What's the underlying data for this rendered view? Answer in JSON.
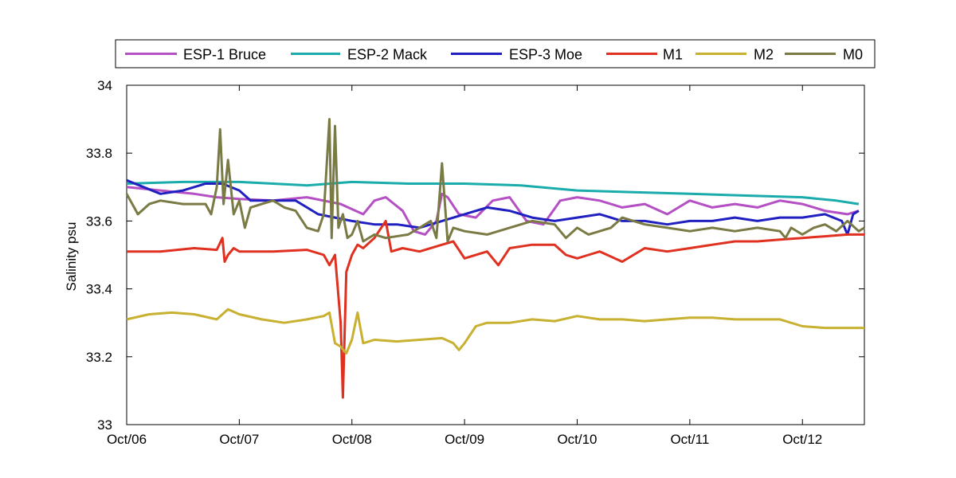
{
  "chart_data": {
    "type": "line",
    "xlabel": "",
    "ylabel": "Salinity psu",
    "ylim": [
      33,
      34
    ],
    "xlim": [
      0,
      6.55
    ],
    "x_ticks": [
      0,
      1,
      2,
      3,
      4,
      5,
      6
    ],
    "x_tick_labels": [
      "Oct/06",
      "Oct/07",
      "Oct/08",
      "Oct/09",
      "Oct/10",
      "Oct/11",
      "Oct/12"
    ],
    "y_ticks": [
      33,
      33.2,
      33.4,
      33.6,
      33.8,
      34
    ],
    "y_tick_labels": [
      "33",
      "33.2",
      "33.4",
      "33.6",
      "33.8",
      "34"
    ],
    "grid": false,
    "legend_position": "top",
    "series": [
      {
        "name": "ESP-1 Bruce",
        "color": "#b44fc4",
        "x": [
          0,
          0.3,
          0.6,
          0.8,
          1.0,
          1.3,
          1.6,
          1.9,
          2.1,
          2.2,
          2.3,
          2.45,
          2.55,
          2.65,
          2.75,
          2.8,
          2.85,
          2.95,
          3.1,
          3.25,
          3.4,
          3.55,
          3.7,
          3.85,
          4.0,
          4.2,
          4.4,
          4.6,
          4.8,
          5.0,
          5.2,
          5.4,
          5.6,
          5.8,
          6.0,
          6.2,
          6.4,
          6.5
        ],
        "y": [
          33.7,
          33.69,
          33.68,
          33.67,
          33.665,
          33.66,
          33.67,
          33.65,
          33.62,
          33.66,
          33.67,
          33.63,
          33.57,
          33.56,
          33.6,
          33.68,
          33.67,
          33.62,
          33.61,
          33.66,
          33.67,
          33.6,
          33.59,
          33.66,
          33.67,
          33.66,
          33.64,
          33.65,
          33.62,
          33.66,
          33.64,
          33.65,
          33.64,
          33.66,
          33.65,
          33.63,
          33.62,
          33.63
        ]
      },
      {
        "name": "ESP-2 Mack",
        "color": "#1aacac",
        "x": [
          0,
          0.5,
          1.0,
          1.3,
          1.6,
          2.0,
          2.5,
          3.0,
          3.5,
          4.0,
          4.5,
          5.0,
          5.5,
          6.0,
          6.3,
          6.5
        ],
        "y": [
          33.71,
          33.715,
          33.715,
          33.71,
          33.705,
          33.715,
          33.71,
          33.71,
          33.705,
          33.69,
          33.685,
          33.68,
          33.675,
          33.67,
          33.66,
          33.65
        ]
      },
      {
        "name": "ESP-3 Moe",
        "color": "#2020c0",
        "x": [
          0,
          0.15,
          0.3,
          0.5,
          0.7,
          0.85,
          1.0,
          1.1,
          1.3,
          1.5,
          1.7,
          1.85,
          2.0,
          2.2,
          2.4,
          2.6,
          2.8,
          3.0,
          3.2,
          3.4,
          3.6,
          3.8,
          4.0,
          4.2,
          4.4,
          4.6,
          4.8,
          5.0,
          5.2,
          5.4,
          5.6,
          5.8,
          6.0,
          6.2,
          6.35,
          6.4,
          6.45,
          6.5
        ],
        "y": [
          33.72,
          33.7,
          33.68,
          33.69,
          33.71,
          33.71,
          33.69,
          33.66,
          33.66,
          33.66,
          33.62,
          33.61,
          33.6,
          33.59,
          33.59,
          33.58,
          33.6,
          33.62,
          33.64,
          33.63,
          33.61,
          33.6,
          33.61,
          33.62,
          33.6,
          33.6,
          33.59,
          33.6,
          33.6,
          33.61,
          33.6,
          33.61,
          33.61,
          33.62,
          33.6,
          33.56,
          33.62,
          33.63
        ]
      },
      {
        "name": "M1",
        "color": "#e03020",
        "x": [
          0,
          0.3,
          0.6,
          0.8,
          0.85,
          0.87,
          0.9,
          0.95,
          1.0,
          1.3,
          1.6,
          1.75,
          1.8,
          1.85,
          1.9,
          1.92,
          1.95,
          2.0,
          2.05,
          2.1,
          2.2,
          2.3,
          2.35,
          2.45,
          2.6,
          2.8,
          2.9,
          3.0,
          3.2,
          3.3,
          3.4,
          3.6,
          3.8,
          3.9,
          4.0,
          4.1,
          4.2,
          4.4,
          4.6,
          4.8,
          5.0,
          5.2,
          5.4,
          5.6,
          5.8,
          6.0,
          6.2,
          6.4,
          6.55
        ],
        "y": [
          33.51,
          33.51,
          33.52,
          33.515,
          33.55,
          33.48,
          33.5,
          33.52,
          33.51,
          33.51,
          33.515,
          33.5,
          33.47,
          33.5,
          33.3,
          33.08,
          33.45,
          33.5,
          33.53,
          33.52,
          33.55,
          33.6,
          33.51,
          33.52,
          33.51,
          33.53,
          33.54,
          33.49,
          33.51,
          33.47,
          33.52,
          33.53,
          33.53,
          33.5,
          33.49,
          33.5,
          33.51,
          33.48,
          33.52,
          33.51,
          33.52,
          33.53,
          33.54,
          33.54,
          33.545,
          33.55,
          33.555,
          33.56,
          33.56
        ]
      },
      {
        "name": "M2",
        "color": "#c8b030",
        "x": [
          0,
          0.2,
          0.4,
          0.6,
          0.8,
          0.9,
          1.0,
          1.2,
          1.4,
          1.6,
          1.75,
          1.8,
          1.85,
          1.9,
          1.95,
          2.0,
          2.05,
          2.1,
          2.2,
          2.4,
          2.6,
          2.8,
          2.9,
          2.95,
          3.0,
          3.1,
          3.2,
          3.4,
          3.6,
          3.8,
          4.0,
          4.2,
          4.4,
          4.6,
          4.8,
          5.0,
          5.2,
          5.4,
          5.6,
          5.8,
          6.0,
          6.2,
          6.4,
          6.55
        ],
        "y": [
          33.31,
          33.325,
          33.33,
          33.325,
          33.31,
          33.34,
          33.325,
          33.31,
          33.3,
          33.31,
          33.32,
          33.33,
          33.24,
          33.23,
          33.21,
          33.25,
          33.33,
          33.24,
          33.25,
          33.245,
          33.25,
          33.255,
          33.24,
          33.22,
          33.24,
          33.29,
          33.3,
          33.3,
          33.31,
          33.305,
          33.32,
          33.31,
          33.31,
          33.305,
          33.31,
          33.315,
          33.315,
          33.31,
          33.31,
          33.31,
          33.29,
          33.285,
          33.285,
          33.285
        ]
      },
      {
        "name": "M0",
        "color": "#7a7a45",
        "x": [
          0,
          0.1,
          0.2,
          0.3,
          0.5,
          0.7,
          0.75,
          0.8,
          0.83,
          0.86,
          0.9,
          0.95,
          1.0,
          1.05,
          1.1,
          1.2,
          1.3,
          1.4,
          1.5,
          1.6,
          1.7,
          1.75,
          1.8,
          1.82,
          1.85,
          1.88,
          1.92,
          1.96,
          2.0,
          2.05,
          2.1,
          2.2,
          2.3,
          2.5,
          2.6,
          2.7,
          2.75,
          2.8,
          2.85,
          2.9,
          3.0,
          3.2,
          3.4,
          3.6,
          3.8,
          3.9,
          4.0,
          4.1,
          4.2,
          4.3,
          4.4,
          4.6,
          4.8,
          5.0,
          5.2,
          5.4,
          5.6,
          5.8,
          5.85,
          5.9,
          6.0,
          6.1,
          6.2,
          6.3,
          6.4,
          6.5,
          6.55
        ],
        "y": [
          33.68,
          33.62,
          33.65,
          33.66,
          33.65,
          33.65,
          33.62,
          33.7,
          33.87,
          33.65,
          33.78,
          33.62,
          33.66,
          33.58,
          33.64,
          33.65,
          33.66,
          33.64,
          33.63,
          33.58,
          33.57,
          33.62,
          33.9,
          33.55,
          33.88,
          33.58,
          33.62,
          33.55,
          33.56,
          33.6,
          33.54,
          33.56,
          33.55,
          33.56,
          33.58,
          33.6,
          33.55,
          33.77,
          33.54,
          33.58,
          33.57,
          33.56,
          33.58,
          33.6,
          33.59,
          33.55,
          33.58,
          33.56,
          33.57,
          33.58,
          33.61,
          33.59,
          33.58,
          33.57,
          33.58,
          33.57,
          33.58,
          33.57,
          33.55,
          33.58,
          33.56,
          33.58,
          33.59,
          33.57,
          33.6,
          33.57,
          33.58
        ]
      }
    ]
  }
}
